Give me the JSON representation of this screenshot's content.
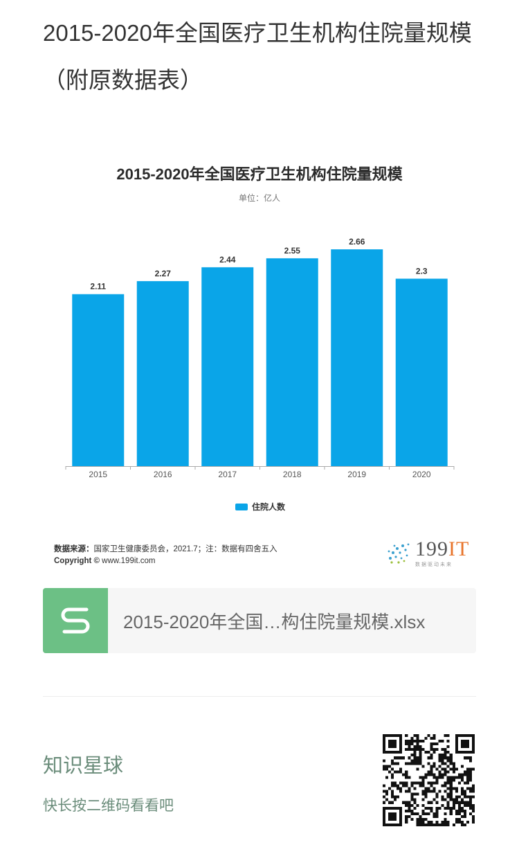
{
  "article": {
    "title": "2015-2020年全国医疗卫生机构住院量规模（附原数据表）"
  },
  "chart_data": {
    "type": "bar",
    "title": "2015-2020年全国医疗卫生机构住院量规模",
    "unit": "单位：亿人",
    "categories": [
      "2015",
      "2016",
      "2017",
      "2018",
      "2019",
      "2020"
    ],
    "series": [
      {
        "name": "住院人数",
        "values": [
          2.11,
          2.27,
          2.44,
          2.55,
          2.66,
          2.3
        ],
        "labels": [
          "2.11",
          "2.27",
          "2.44",
          "2.55",
          "2.66",
          "2.3"
        ],
        "color": "#0aa5e8"
      }
    ],
    "ylim": [
      0,
      2.66
    ],
    "grid": false,
    "legend": "bottom"
  },
  "footer": {
    "source_label": "数据来源：",
    "source_text": "国家卫生健康委员会，2021.7；注：数据有四舍五入",
    "copyright_label": "Copyright ©",
    "copyright_text": "www.199it.com",
    "brand_number": "199",
    "brand_it": "IT",
    "brand_slogan": "数据驱动未来"
  },
  "attachment": {
    "file_name": "2015-2020年全国…构住院量规模.xlsx",
    "icon": "spreadsheet-s-icon",
    "icon_color": "#6cc085"
  },
  "promo": {
    "title": "知识星球",
    "hint": "快长按二维码看看吧",
    "accent": "#6a8c7a"
  }
}
